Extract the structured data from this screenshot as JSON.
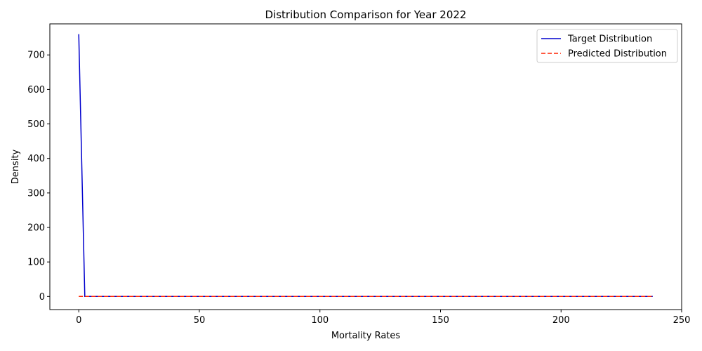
{
  "chart_data": {
    "type": "line",
    "title": "Distribution Comparison for Year 2022",
    "xlabel": "Mortality Rates",
    "ylabel": "Density",
    "xlim": [
      -12,
      250
    ],
    "ylim": [
      -38,
      790
    ],
    "xticks": [
      0,
      50,
      100,
      150,
      200,
      250
    ],
    "yticks": [
      0,
      100,
      200,
      300,
      400,
      500,
      600,
      700
    ],
    "grid": false,
    "legend_position": "top-right",
    "series": [
      {
        "name": "Target Distribution",
        "color": "#0000cd",
        "style": "solid",
        "x": [
          0,
          2.5,
          238
        ],
        "y": [
          760,
          0,
          0
        ]
      },
      {
        "name": "Predicted Distribution",
        "color": "#ff2200",
        "style": "dashed",
        "x": [
          0,
          238
        ],
        "y": [
          0,
          0
        ]
      }
    ]
  }
}
